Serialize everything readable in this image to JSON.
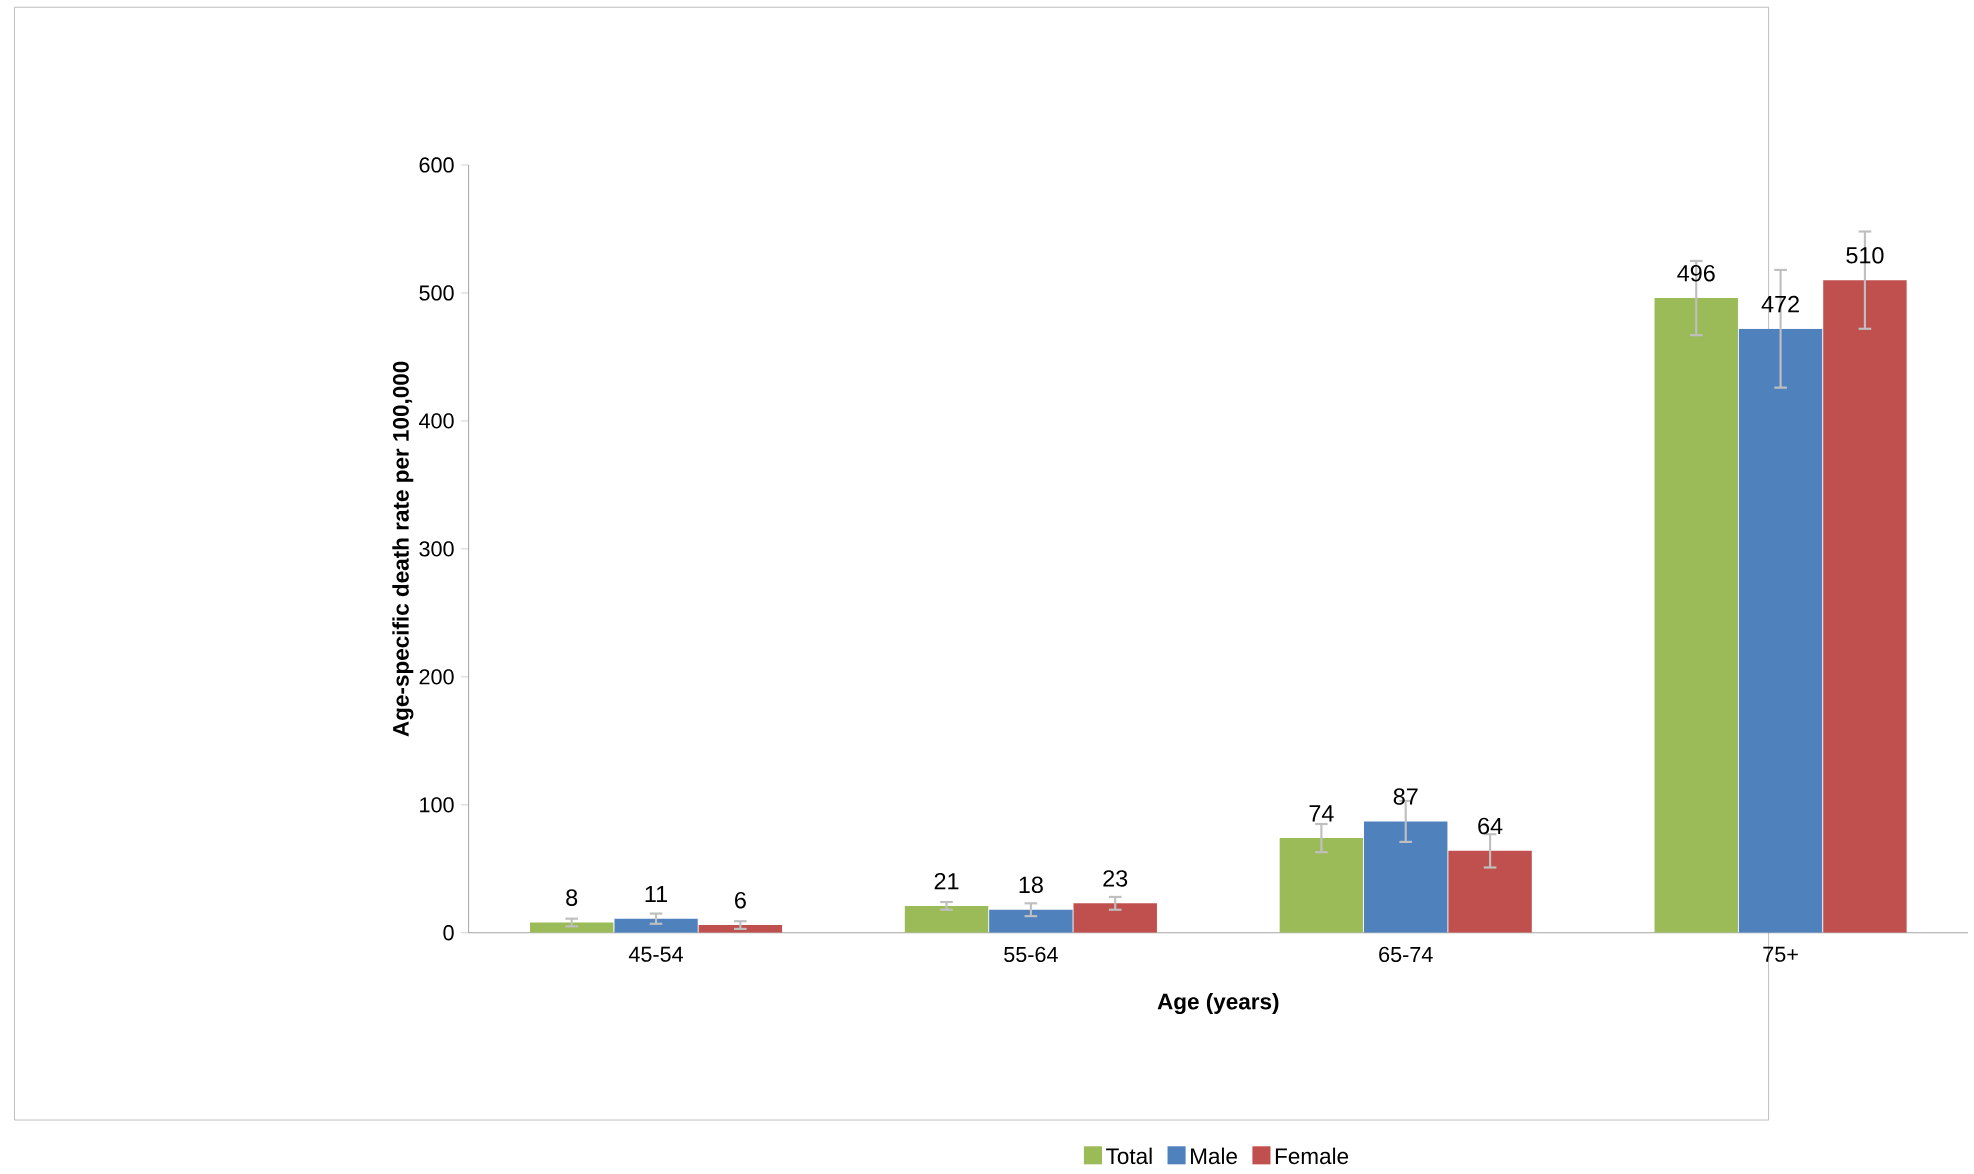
{
  "chart_data": {
    "type": "bar",
    "xlabel": "Age (years)",
    "ylabel": "Age-specific death rate per 100,000",
    "categories": [
      "45-54",
      "55-64",
      "65-74",
      "75+"
    ],
    "series": [
      {
        "name": "Total",
        "color": "#9bbb59",
        "values": [
          8,
          21,
          74,
          496
        ],
        "errors": [
          3,
          3,
          11,
          29
        ]
      },
      {
        "name": "Male",
        "color": "#4f81bd",
        "values": [
          11,
          18,
          87,
          472
        ],
        "errors": [
          4,
          5,
          16,
          46
        ]
      },
      {
        "name": "Female",
        "color": "#c0504d",
        "values": [
          6,
          23,
          64,
          510
        ],
        "errors": [
          3,
          5,
          13,
          38
        ]
      }
    ],
    "ylim": [
      0,
      600
    ],
    "yticks": [
      0,
      100,
      200,
      300,
      400,
      500,
      600
    ],
    "data_labels": true,
    "grid": false,
    "legend": "bottom"
  }
}
